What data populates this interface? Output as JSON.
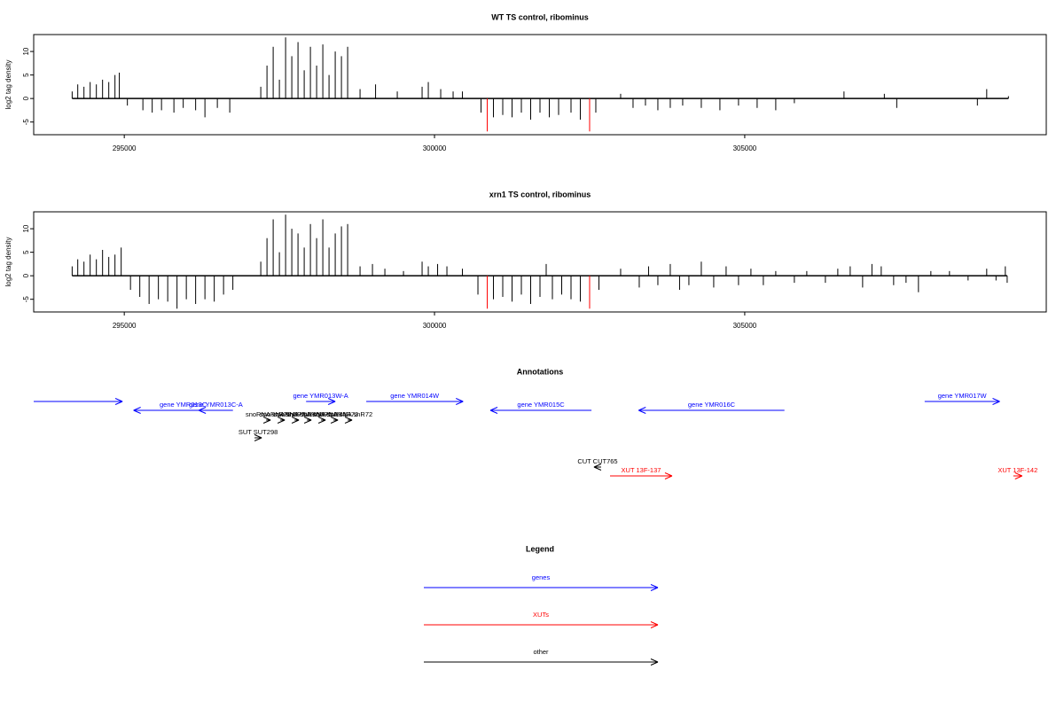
{
  "chart_data": [
    {
      "type": "density",
      "title": "WT TS control, ribominus",
      "y_label": "log2 tag density",
      "xlim": [
        293540,
        309860
      ],
      "xticks": [
        295000,
        300000,
        305000
      ],
      "ylim": [
        -7.7,
        13.6
      ],
      "yticks": [
        -5,
        0,
        5,
        10
      ],
      "series": [
        {
          "color": "#000000",
          "x": [
            294160,
            294250,
            294350,
            294450,
            294550,
            294650,
            294750,
            294850,
            294920,
            295050,
            295300,
            295450,
            295600,
            295800,
            295950,
            296150,
            296300,
            296500,
            296700,
            297200,
            297300,
            297400,
            297500,
            297600,
            297700,
            297800,
            297900,
            298000,
            298100,
            298200,
            298300,
            298400,
            298500,
            298600,
            298800,
            299050,
            299400,
            299800,
            299900,
            300100,
            300300,
            300450,
            300750,
            300950,
            301100,
            301250,
            301400,
            301550,
            301700,
            301850,
            302000,
            302200,
            302350,
            302600,
            303000,
            303200,
            303400,
            303600,
            303800,
            304000,
            304300,
            304600,
            304900,
            305200,
            305500,
            305800,
            306600,
            307250,
            307450,
            308750,
            308900,
            309250
          ],
          "values": [
            1.5,
            3,
            2.5,
            3.5,
            3,
            4,
            3.5,
            5,
            5.5,
            -1.5,
            -2.5,
            -3,
            -2.5,
            -3,
            -2,
            -2.5,
            -4,
            -2,
            -3,
            2.5,
            7,
            11,
            4,
            13,
            9,
            12,
            6,
            11,
            7,
            11.5,
            5,
            10,
            9,
            11,
            2,
            3,
            1.5,
            2.5,
            3.5,
            2,
            1.5,
            1.5,
            -3,
            -4,
            -3.5,
            -4,
            -3,
            -4.5,
            -3,
            -4,
            -3.5,
            -3,
            -4.5,
            -3,
            1,
            -2,
            -1.5,
            -2.5,
            -2,
            -1.5,
            -2,
            -2.5,
            -1.5,
            -2,
            -2.5,
            -1,
            1.5,
            1,
            -2,
            -1.5,
            2,
            0.5
          ]
        },
        {
          "color": "#ff0000",
          "x": [
            300850,
            302500
          ],
          "values": [
            -7,
            -7
          ]
        }
      ]
    },
    {
      "type": "density",
      "title": "xrn1 TS control, ribominus",
      "y_label": "log2 tag density",
      "xlim": [
        293540,
        309860
      ],
      "xticks": [
        295000,
        300000,
        305000
      ],
      "ylim": [
        -7.7,
        13.6
      ],
      "yticks": [
        -5,
        0,
        5,
        10
      ],
      "series": [
        {
          "color": "#000000",
          "x": [
            294160,
            294250,
            294350,
            294450,
            294550,
            294650,
            294750,
            294850,
            294950,
            295100,
            295250,
            295400,
            295550,
            295700,
            295850,
            296000,
            296150,
            296300,
            296450,
            296600,
            296750,
            297200,
            297300,
            297400,
            297500,
            297600,
            297700,
            297800,
            297900,
            298000,
            298100,
            298200,
            298300,
            298400,
            298500,
            298600,
            298800,
            299000,
            299200,
            299500,
            299800,
            299900,
            300050,
            300200,
            300450,
            300700,
            300950,
            301100,
            301250,
            301400,
            301550,
            301700,
            301800,
            301900,
            302050,
            302200,
            302350,
            302650,
            303000,
            303300,
            303450,
            303600,
            303800,
            303950,
            304100,
            304300,
            304500,
            304700,
            304900,
            305100,
            305300,
            305500,
            305800,
            306000,
            306300,
            306500,
            306700,
            306900,
            307050,
            307200,
            307400,
            307600,
            307800,
            308000,
            308300,
            308600,
            308900,
            309050,
            309200,
            309230
          ],
          "values": [
            2,
            3.5,
            3,
            4.5,
            3.5,
            5.5,
            4,
            4.5,
            6,
            -3,
            -4.5,
            -6,
            -5,
            -5.5,
            -7,
            -5,
            -6,
            -5,
            -5.5,
            -4,
            -3,
            3,
            8,
            12,
            5,
            13,
            10,
            9,
            6,
            11,
            8,
            12,
            6,
            9,
            10.5,
            11,
            2,
            2.5,
            1.5,
            1,
            3,
            2,
            2.5,
            2,
            1.5,
            -4,
            -5,
            -4.5,
            -5.5,
            -4,
            -6,
            -4.5,
            2.5,
            -5,
            -4,
            -5,
            -5.5,
            -3,
            1.5,
            -2.5,
            2,
            -2,
            2.5,
            -3,
            -2,
            3,
            -2.5,
            2,
            -2,
            1.5,
            -2,
            1,
            -1.5,
            1,
            -1.5,
            1.5,
            2,
            -2.5,
            2.5,
            2,
            -2,
            -1.5,
            -3.5,
            1,
            1,
            -1,
            1.5,
            -1,
            2,
            -1.5
          ]
        },
        {
          "color": "#ff0000",
          "x": [
            300850,
            302500
          ],
          "values": [
            -7,
            -7
          ]
        }
      ]
    },
    {
      "type": "annotations",
      "title": "Annotations",
      "xlim": [
        293540,
        309860
      ],
      "colors": {
        "gene": "#0000ff",
        "XUT": "#ff0000",
        "other": "#000000"
      },
      "features": [
        {
          "start": 293540,
          "end": 294970,
          "strand": "+",
          "kind": "gene"
        },
        {
          "label": "gene YMR013C",
          "start": 295150,
          "end": 296750,
          "strand": "-",
          "kind": "gene"
        },
        {
          "label": "gene YMR013C-A",
          "start": 296200,
          "end": 296750,
          "strand": "-",
          "kind": "gene"
        },
        {
          "label": "gene YMR013W-A",
          "start": 297930,
          "end": 298400,
          "strand": "+",
          "kind": "gene"
        },
        {
          "label": "gene YMR014W",
          "start": 298900,
          "end": 300460,
          "strand": "+",
          "kind": "gene"
        },
        {
          "label": "gene YMR015C",
          "start": 300900,
          "end": 302530,
          "strand": "-",
          "kind": "gene"
        },
        {
          "label": "gene YMR016C",
          "start": 303290,
          "end": 305640,
          "strand": "-",
          "kind": "gene"
        },
        {
          "label": "gene YMR017W",
          "start": 307900,
          "end": 309110,
          "strand": "+",
          "kind": "gene"
        },
        {
          "label": "snoRNA snR78",
          "start": 297286,
          "end": 297357,
          "strand": "+",
          "kind": "other"
        },
        {
          "label": "snoRNA snR77",
          "start": 297514,
          "end": 297586,
          "strand": "+",
          "kind": "other"
        },
        {
          "label": "snoRNA snR76",
          "start": 297743,
          "end": 297814,
          "strand": "+",
          "kind": "other"
        },
        {
          "label": "snoRNA snR75",
          "start": 297943,
          "end": 298014,
          "strand": "+",
          "kind": "other"
        },
        {
          "label": "snoRNA snR74",
          "start": 298171,
          "end": 298243,
          "strand": "+",
          "kind": "other"
        },
        {
          "label": "snoRNA snR73",
          "start": 298371,
          "end": 298443,
          "strand": "+",
          "kind": "other"
        },
        {
          "label": "snoRNA snR72",
          "start": 298600,
          "end": 298671,
          "strand": "+",
          "kind": "other"
        },
        {
          "label": "SUT SUT298",
          "start": 297100,
          "end": 297214,
          "strand": "+",
          "kind": "other"
        },
        {
          "label": "CUT CUT765",
          "start": 302571,
          "end": 302686,
          "strand": "-",
          "kind": "other"
        },
        {
          "label": "XUT 13F-137",
          "start": 302829,
          "end": 303829,
          "strand": "+",
          "kind": "XUT"
        },
        {
          "label": "XUT 13F-142",
          "start": 309329,
          "end": 309471,
          "strand": "+",
          "kind": "XUT"
        }
      ]
    },
    {
      "type": "legend",
      "title": "Legend",
      "entries": [
        {
          "label": "genes",
          "color": "#0000ff"
        },
        {
          "label": "XUTs",
          "color": "#ff0000"
        },
        {
          "label": "other",
          "color": "#000000"
        }
      ]
    }
  ]
}
